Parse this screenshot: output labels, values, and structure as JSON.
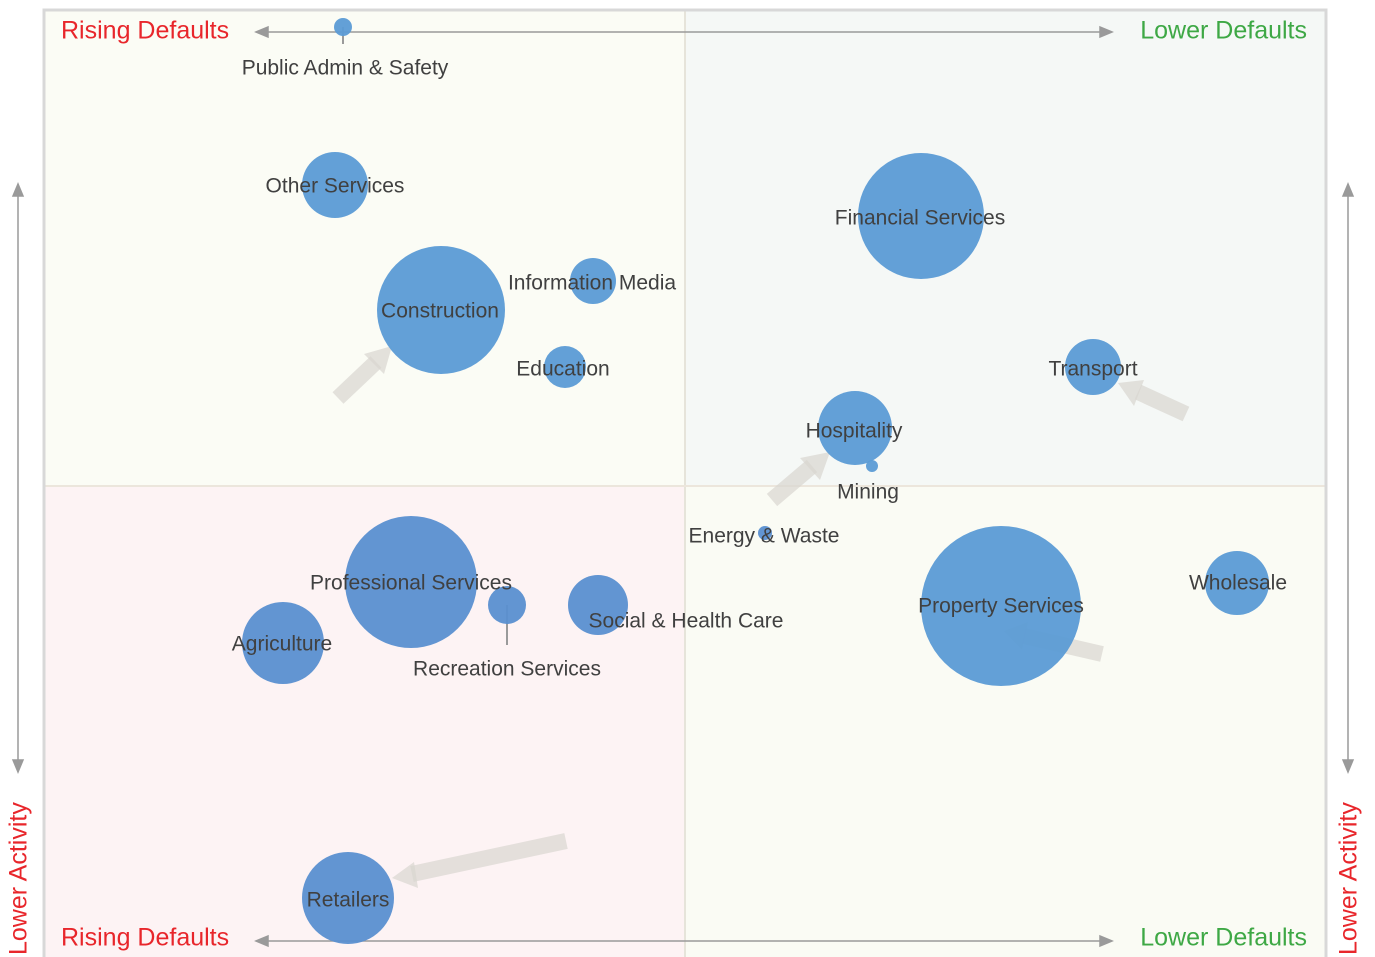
{
  "corners": {
    "top_left": "Rising Defaults",
    "top_right": "Lower Defaults",
    "bottom_left": "Rising Defaults",
    "bottom_right": "Lower Defaults",
    "left": "Lower Activity",
    "right": "Lower Activity"
  },
  "nodes": [
    {
      "label": "Public Admin & Safety"
    },
    {
      "label": "Other Services"
    },
    {
      "label": "Construction"
    },
    {
      "label": "Information Media"
    },
    {
      "label": "Education"
    },
    {
      "label": "Financial Services"
    },
    {
      "label": "Transport"
    },
    {
      "label": "Hospitality"
    },
    {
      "label": "Mining"
    },
    {
      "label": "Energy & Waste"
    },
    {
      "label": "Professional Services"
    },
    {
      "label": "Recreation Services"
    },
    {
      "label": "Social & Health Care"
    },
    {
      "label": "Agriculture"
    },
    {
      "label": "Wholesale"
    },
    {
      "label": "Property Services"
    },
    {
      "label": "Retailers"
    }
  ]
}
